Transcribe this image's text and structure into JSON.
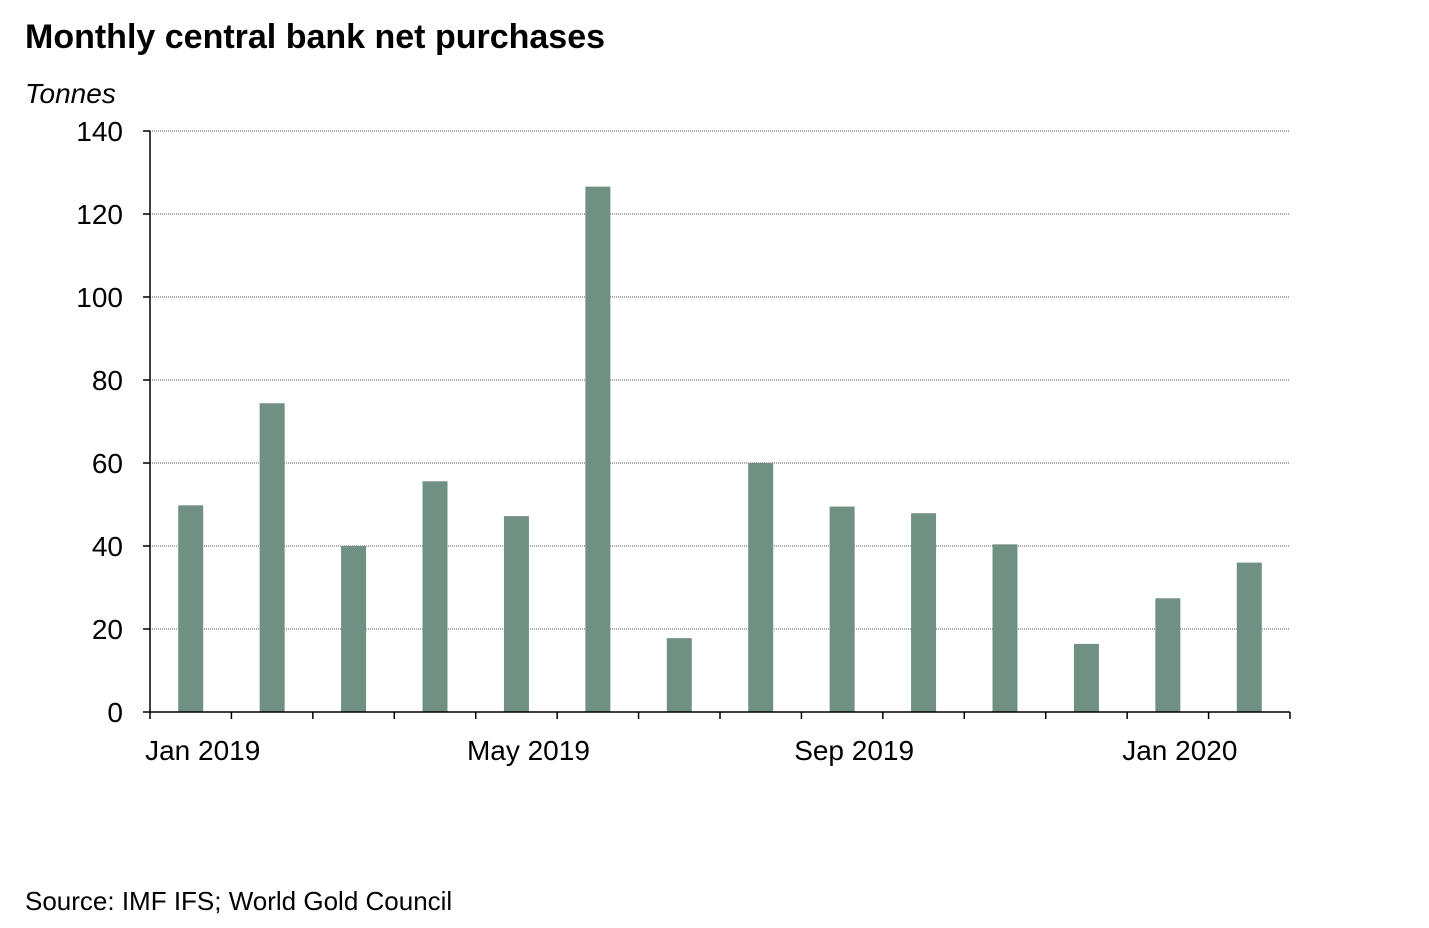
{
  "chart_data": {
    "type": "bar",
    "title": "Monthly central bank net purchases",
    "ylabel": "Tonnes",
    "xlabel": "",
    "categories": [
      "Jan 2019",
      "Feb 2019",
      "Mar 2019",
      "Apr 2019",
      "May 2019",
      "Jun 2019",
      "Jul 2019",
      "Aug 2019",
      "Sep 2019",
      "Oct 2019",
      "Nov 2019",
      "Dec 2019",
      "Jan 2020",
      "Feb 2020"
    ],
    "values": [
      49.8,
      74.4,
      40.0,
      55.6,
      47.2,
      126.6,
      17.8,
      60.0,
      49.5,
      47.9,
      40.4,
      16.4,
      27.4,
      36.0
    ],
    "ylim": [
      0,
      140
    ],
    "yticks": [
      0,
      20,
      40,
      60,
      80,
      100,
      120,
      140
    ],
    "xtick_labels": [
      {
        "label": "Jan 2019",
        "index": 0
      },
      {
        "label": "May 2019",
        "index": 4
      },
      {
        "label": "Sep 2019",
        "index": 8
      },
      {
        "label": "Jan 2020",
        "index": 12
      }
    ],
    "grid": true,
    "bar_color": "#6f9082",
    "source": "Source: IMF IFS; World Gold Council"
  }
}
